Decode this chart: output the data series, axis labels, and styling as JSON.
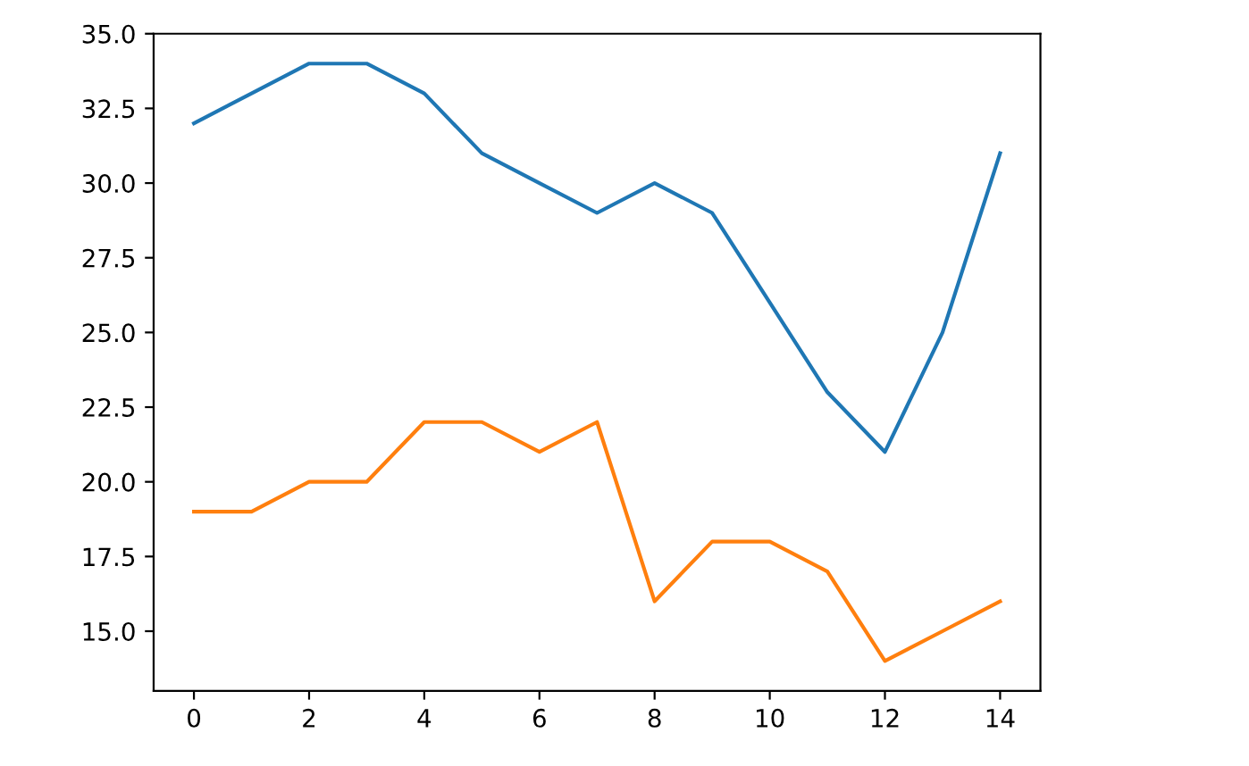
{
  "chart_data": {
    "type": "line",
    "x": [
      0,
      1,
      2,
      3,
      4,
      5,
      6,
      7,
      8,
      9,
      10,
      11,
      12,
      13,
      14
    ],
    "series": [
      {
        "color": "#1f77b4",
        "values": [
          32,
          33,
          34,
          34,
          33,
          31,
          30,
          29,
          30,
          29,
          26,
          23,
          21,
          25,
          31
        ]
      },
      {
        "color": "#ff7f0e",
        "values": [
          19,
          19,
          20,
          20,
          22,
          22,
          21,
          22,
          16,
          18,
          18,
          17,
          14,
          15,
          16
        ]
      }
    ],
    "xlim": [
      -0.7,
      14.7
    ],
    "ylim": [
      13,
      35
    ],
    "xticks": [
      0,
      2,
      4,
      6,
      8,
      10,
      12,
      14
    ],
    "yticks": [
      {
        "value": 15,
        "label": "15.0"
      },
      {
        "value": 17.5,
        "label": "17.5"
      },
      {
        "value": 20,
        "label": "20.0"
      },
      {
        "value": 22.5,
        "label": "22.5"
      },
      {
        "value": 25,
        "label": "25.0"
      },
      {
        "value": 27.5,
        "label": "27.5"
      },
      {
        "value": 30,
        "label": "30.0"
      },
      {
        "value": 32.5,
        "label": "32.5"
      },
      {
        "value": 35,
        "label": "35.0"
      }
    ],
    "grid": false
  }
}
